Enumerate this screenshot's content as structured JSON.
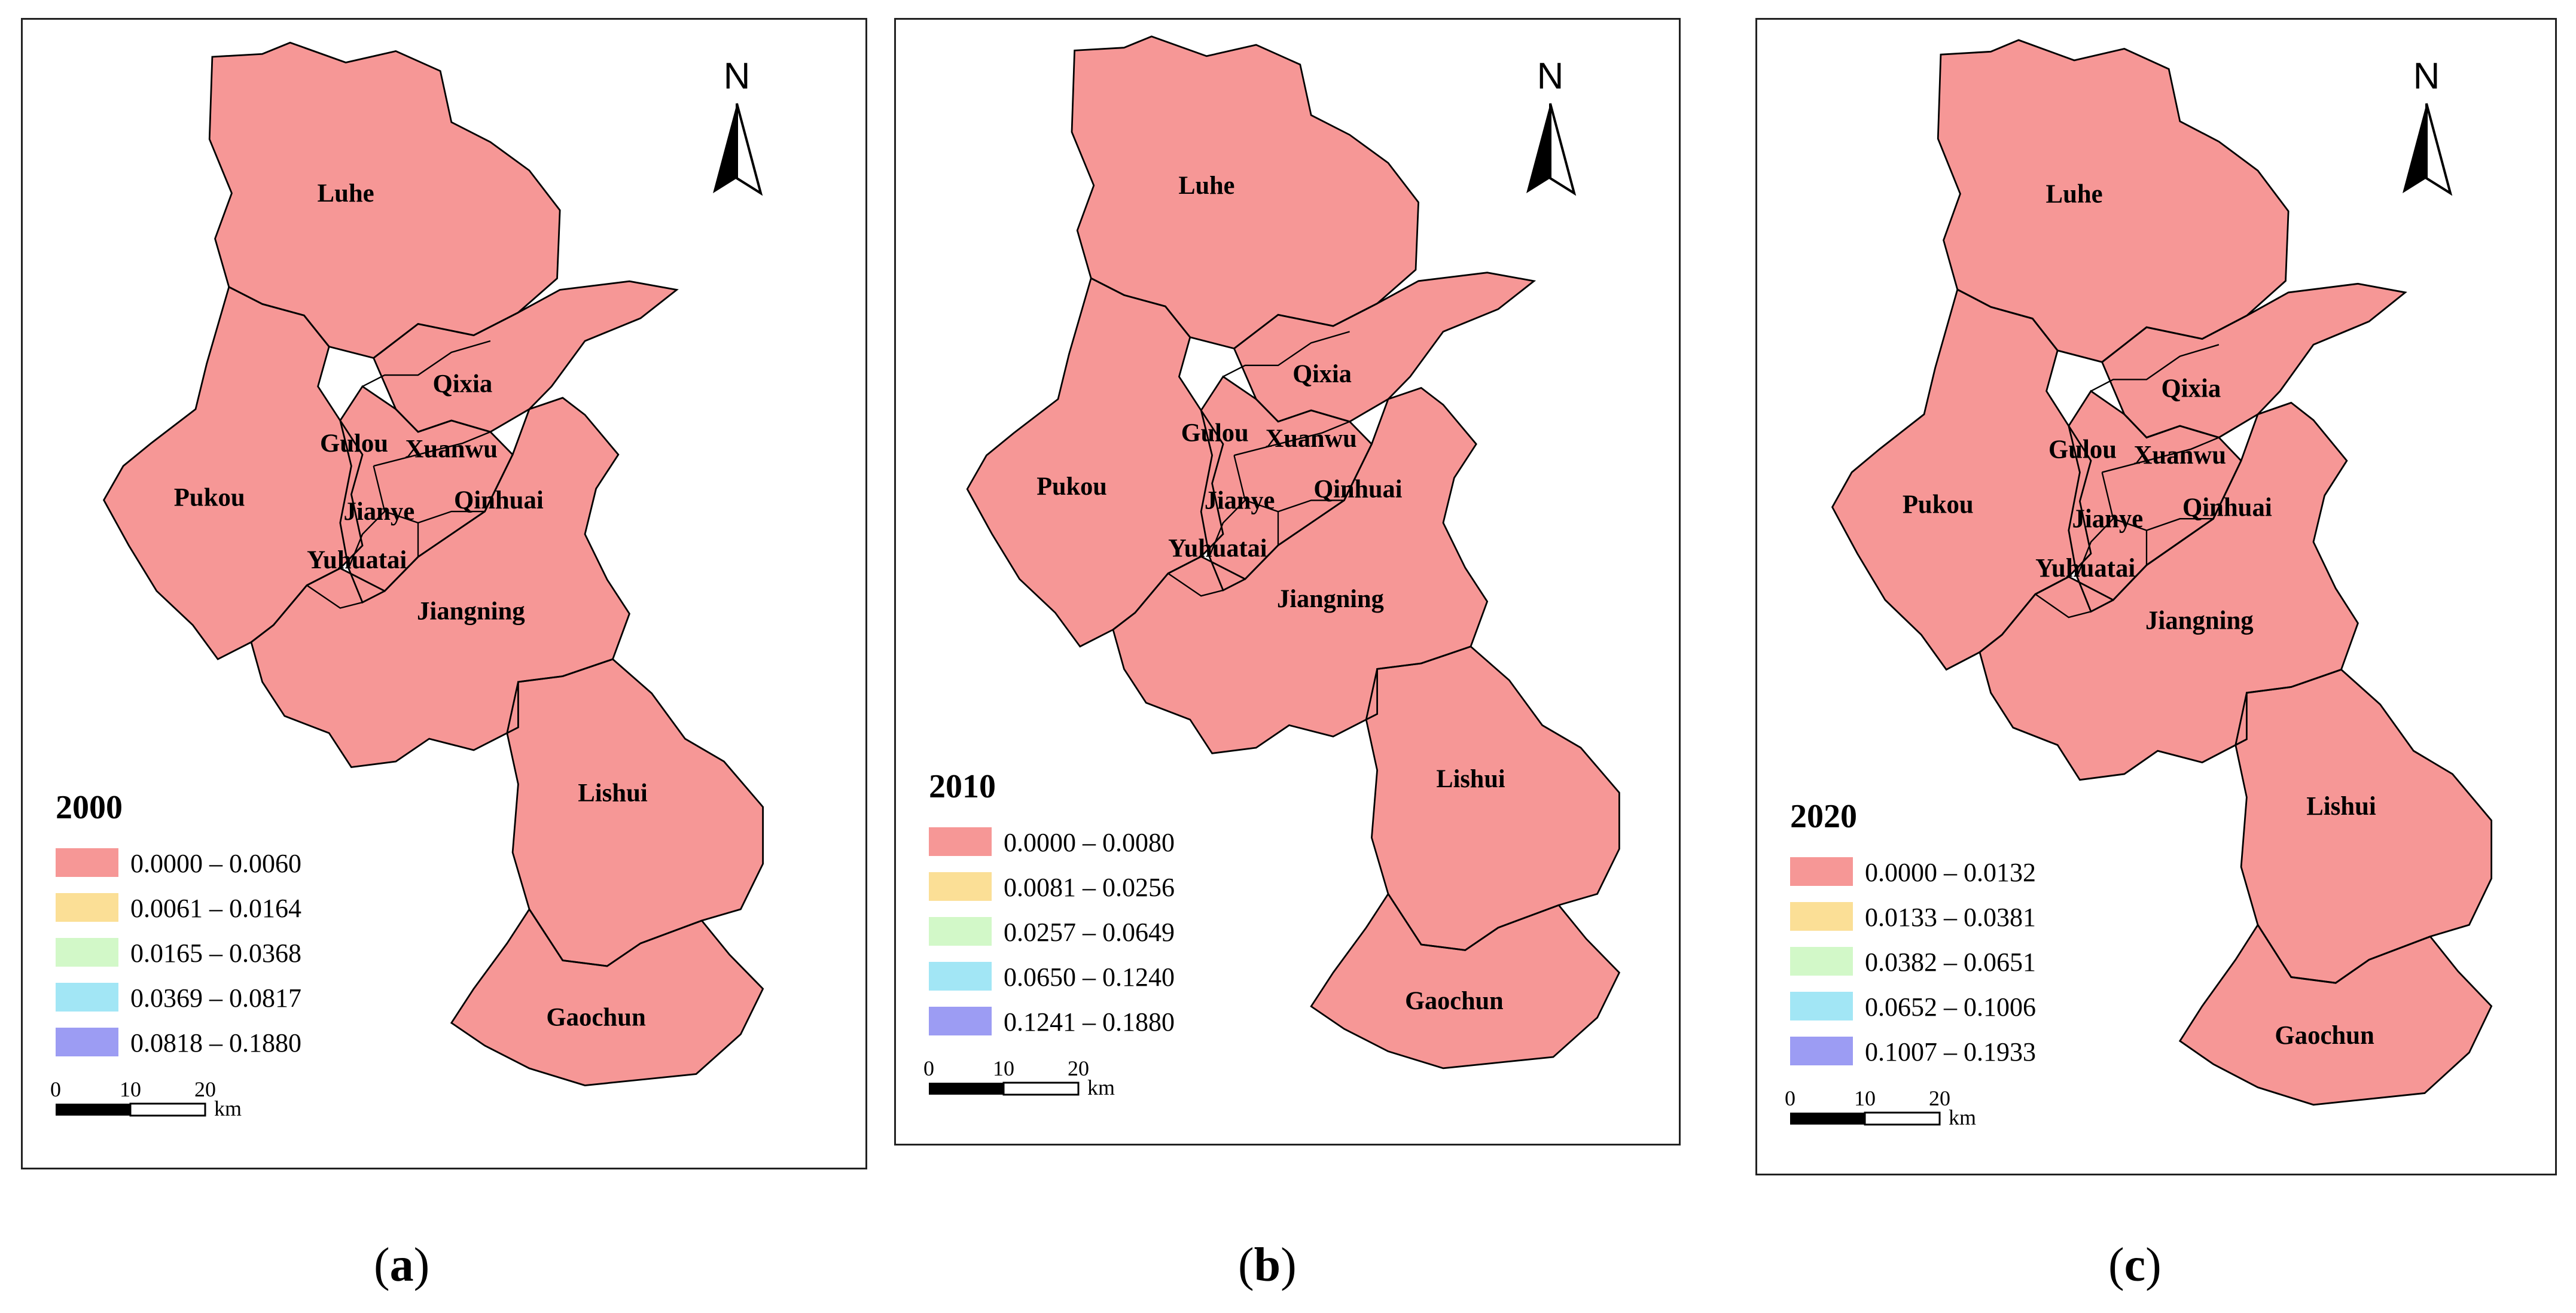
{
  "colors": {
    "class1": "#f69796",
    "class2": "#fbdf96",
    "class3": "#d2f8c8",
    "class4": "#a2e6f5",
    "class5": "#9c9cf3",
    "boundary": "#000000"
  },
  "panels": [
    {
      "year": "2000",
      "caption_letter": "a",
      "legend": [
        "0.0000 – 0.0060",
        "0.0061 – 0.0164",
        "0.0165 – 0.0368",
        "0.0369 – 0.0817",
        "0.0818 – 0.1880"
      ],
      "districts": [
        "Luhe",
        "Qixia",
        "Gulou",
        "Xuanwu",
        "Pukou",
        "Qinhuai",
        "Jianye",
        "Yuhuatai",
        "Jiangning",
        "Lishui",
        "Gaochun"
      ],
      "north": "N",
      "scale": {
        "ticks": [
          "0",
          "10",
          "20"
        ],
        "unit": "km"
      }
    },
    {
      "year": "2010",
      "caption_letter": "b",
      "legend": [
        "0.0000 – 0.0080",
        "0.0081 – 0.0256",
        "0.0257 – 0.0649",
        "0.0650 – 0.1240",
        "0.1241 – 0.1880"
      ],
      "districts": [
        "Luhe",
        "Qixia",
        "Gulou",
        "Xuanwu",
        "Pukou",
        "Qinhuai",
        "Jianye",
        "Yuhuatai",
        "Jiangning",
        "Lishui",
        "Gaochun"
      ],
      "north": "N",
      "scale": {
        "ticks": [
          "0",
          "10",
          "20"
        ],
        "unit": "km"
      }
    },
    {
      "year": "2020",
      "caption_letter": "c",
      "legend": [
        "0.0000 – 0.0132",
        "0.0133 – 0.0381",
        "0.0382 – 0.0651",
        "0.0652 – 0.1006",
        "0.1007 – 0.1933"
      ],
      "districts": [
        "Luhe",
        "Qixia",
        "Gulou",
        "Xuanwu",
        "Pukou",
        "Qinhuai",
        "Jianye",
        "Yuhuatai",
        "Jiangning",
        "Lishui",
        "Gaochun"
      ],
      "north": "N",
      "scale": {
        "ticks": [
          "0",
          "10",
          "20"
        ],
        "unit": "km"
      }
    }
  ]
}
